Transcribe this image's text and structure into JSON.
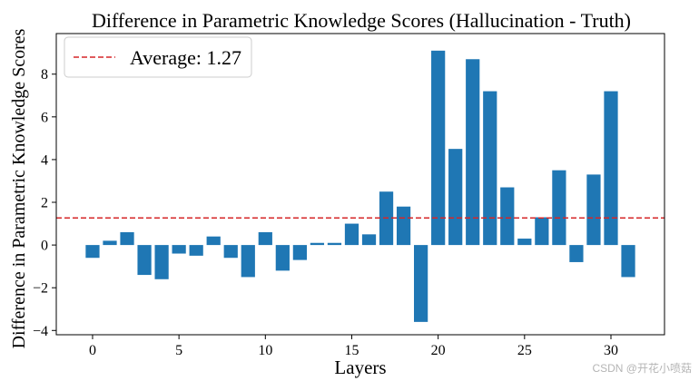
{
  "chart_data": {
    "type": "bar",
    "title": "Difference in Parametric Knowledge Scores (Hallucination - Truth)",
    "xlabel": "Layers",
    "ylabel": "Difference in Parametric Knowledge Scores",
    "x": [
      0,
      1,
      2,
      3,
      4,
      5,
      6,
      7,
      8,
      9,
      10,
      11,
      12,
      13,
      14,
      15,
      16,
      17,
      18,
      19,
      20,
      21,
      22,
      23,
      24,
      25,
      26,
      27,
      28,
      29,
      30,
      31
    ],
    "values": [
      -0.6,
      0.2,
      0.6,
      -1.4,
      -1.6,
      -0.4,
      -0.5,
      0.4,
      -0.6,
      -1.5,
      0.6,
      -1.2,
      -0.7,
      0.1,
      0.1,
      1.0,
      0.5,
      2.5,
      1.8,
      -3.6,
      9.1,
      4.5,
      8.7,
      7.2,
      2.7,
      0.3,
      1.3,
      3.5,
      -0.8,
      3.3,
      7.2,
      -1.5
    ],
    "xlim": [
      -2.1,
      33.1
    ],
    "ylim": [
      -4.2,
      9.9
    ],
    "xticks": [
      0,
      5,
      10,
      15,
      20,
      25,
      30
    ],
    "xtick_labels": [
      "0",
      "5",
      "10",
      "15",
      "20",
      "25",
      "30"
    ],
    "yticks": [
      -4,
      -2,
      0,
      2,
      4,
      6,
      8
    ],
    "ytick_labels": [
      "−4",
      "−2",
      "0",
      "2",
      "4",
      "6",
      "8"
    ],
    "bar_color": "#1f77b4",
    "average": {
      "value": 1.27,
      "label": "Average: 1.27",
      "color": "#d62728",
      "style": "dashed"
    },
    "legend": {
      "position": "top-left"
    },
    "grid": false
  },
  "watermark": "CSDN @开花小喷菇"
}
